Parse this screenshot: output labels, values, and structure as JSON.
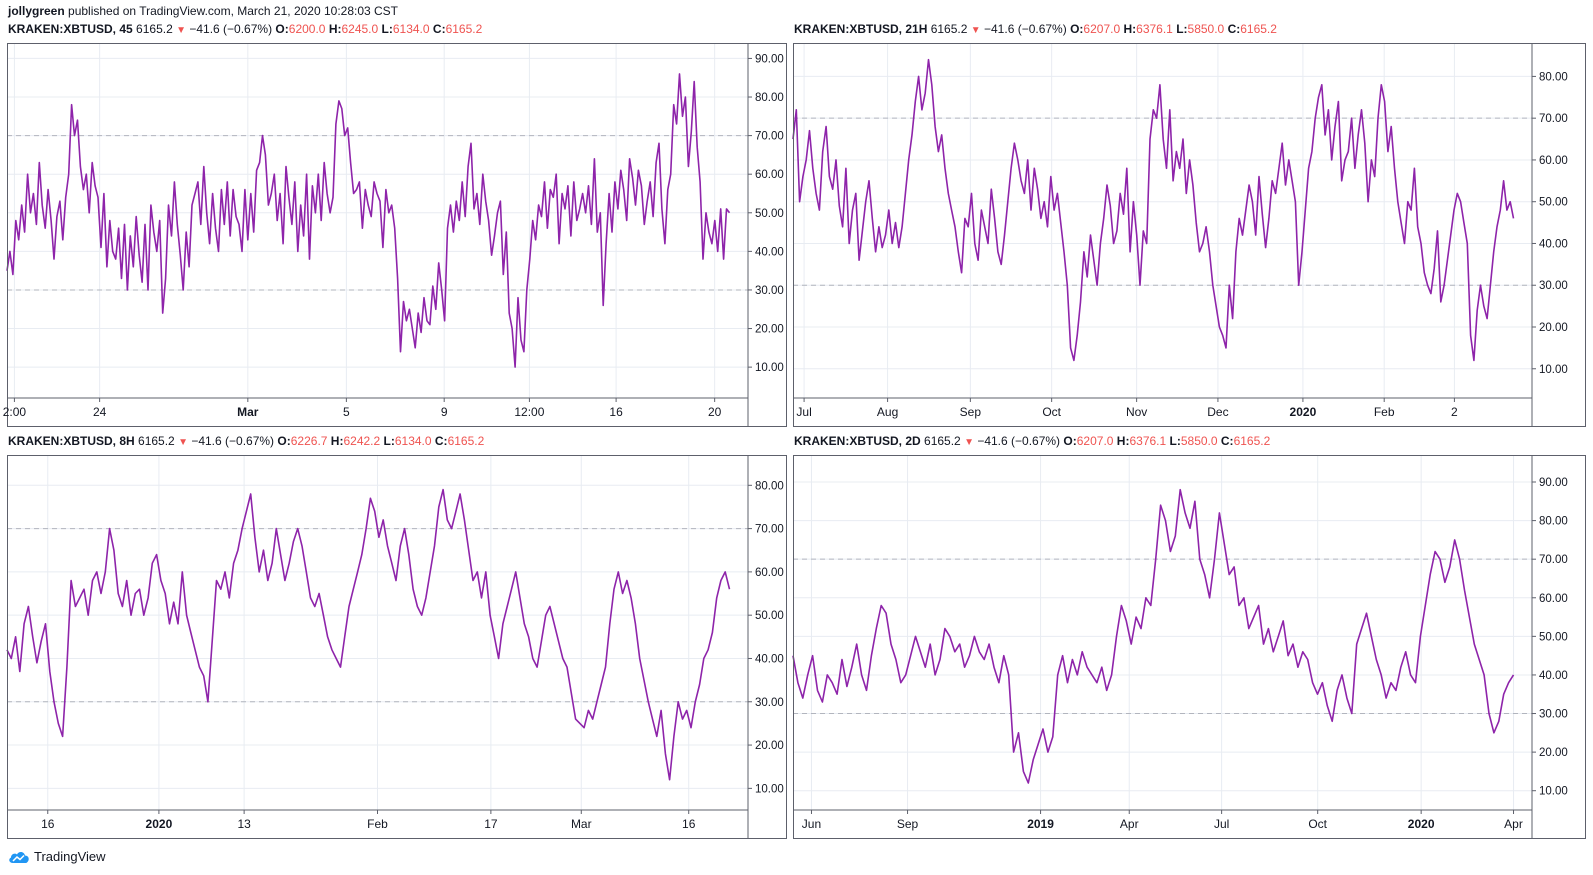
{
  "publisher": {
    "user": "jollygreen",
    "text": "published on TradingView.com, March 21, 2020 10:28:03 CST"
  },
  "footer": {
    "brand": "TradingView",
    "icon": "tradingview-cloud-icon"
  },
  "colors": {
    "series": "#8e24aa",
    "down": "#ef5350",
    "grid": "#e8ecf2",
    "level": "#b2b5be"
  },
  "chart_data": [
    {
      "type": "line",
      "symbol": "KRAKEN:XBTUSD",
      "interval": "45",
      "last": "6165.2",
      "change": "−41.6 (−0.67%)",
      "o": "6200.0",
      "h": "6245.0",
      "l": "6134.0",
      "c": "6165.2",
      "ylim": [
        2,
        94
      ],
      "yticks": [
        10,
        20,
        30,
        40,
        50,
        60,
        70,
        80,
        90
      ],
      "ytick_labels": [
        "10.00",
        "20.00",
        "30.00",
        "40.00",
        "50.00",
        "60.00",
        "70.00",
        "80.00",
        "90.00"
      ],
      "levels": [
        30,
        70
      ],
      "xticks": [
        {
          "label": "2:00",
          "pos": 0.01,
          "bold": false
        },
        {
          "label": "24",
          "pos": 0.125,
          "bold": false
        },
        {
          "label": "Mar",
          "pos": 0.325,
          "bold": true
        },
        {
          "label": "5",
          "pos": 0.458,
          "bold": false
        },
        {
          "label": "9",
          "pos": 0.59,
          "bold": false
        },
        {
          "label": "12:00",
          "pos": 0.705,
          "bold": false
        },
        {
          "label": "16",
          "pos": 0.822,
          "bold": false
        },
        {
          "label": "20",
          "pos": 0.955,
          "bold": false
        }
      ],
      "values": [
        35,
        40,
        34,
        48,
        43,
        52,
        45,
        60,
        50,
        55,
        47,
        63,
        52,
        46,
        56,
        48,
        38,
        49,
        53,
        43,
        54,
        60,
        78,
        70,
        74,
        62,
        56,
        60,
        50,
        63,
        57,
        54,
        41,
        55,
        36,
        48,
        40,
        38,
        46,
        33,
        47,
        30,
        44,
        36,
        49,
        39,
        32,
        47,
        30,
        52,
        45,
        40,
        48,
        24,
        33,
        52,
        44,
        58,
        47,
        39,
        30,
        45,
        36,
        52,
        55,
        58,
        47,
        62,
        50,
        42,
        55,
        46,
        40,
        56,
        47,
        58,
        44,
        56,
        49,
        47,
        40,
        56,
        43,
        55,
        45,
        61,
        63,
        70,
        65,
        52,
        55,
        60,
        48,
        55,
        42,
        62,
        54,
        47,
        58,
        40,
        52,
        44,
        60,
        38,
        57,
        50,
        60,
        48,
        63,
        55,
        50,
        54,
        73,
        79,
        77,
        70,
        72,
        63,
        55,
        56,
        58,
        46,
        56,
        52,
        49,
        58,
        55,
        53,
        41,
        56,
        50,
        52,
        46,
        33,
        14,
        27,
        22,
        25,
        20,
        15,
        24,
        19,
        28,
        22,
        21,
        31,
        25,
        37,
        30,
        22,
        46,
        52,
        45,
        53,
        48,
        58,
        49,
        62,
        68,
        51,
        55,
        47,
        60,
        53,
        48,
        39,
        44,
        50,
        53,
        34,
        45,
        24,
        20,
        10,
        28,
        17,
        14,
        30,
        38,
        48,
        43,
        52,
        49,
        58,
        46,
        56,
        54,
        60,
        42,
        55,
        51,
        57,
        44,
        58,
        48,
        51,
        55,
        50,
        57,
        47,
        64,
        45,
        50,
        26,
        42,
        55,
        45,
        58,
        51,
        61,
        56,
        48,
        64,
        59,
        52,
        61,
        57,
        47,
        53,
        58,
        49,
        63,
        68,
        51,
        42,
        56,
        60,
        78,
        73,
        86,
        75,
        80,
        62,
        71,
        84,
        67,
        58,
        38,
        50,
        45,
        42,
        48,
        40,
        51,
        38,
        51,
        50
      ]
    },
    {
      "type": "line",
      "symbol": "KRAKEN:XBTUSD",
      "interval": "21H",
      "last": "6165.2",
      "change": "−41.6 (−0.67%)",
      "o": "6207.0",
      "h": "6376.1",
      "l": "5850.0",
      "c": "6165.2",
      "ylim": [
        3,
        88
      ],
      "yticks": [
        10,
        20,
        30,
        40,
        50,
        60,
        70,
        80
      ],
      "ytick_labels": [
        "10.00",
        "20.00",
        "30.00",
        "40.00",
        "50.00",
        "60.00",
        "70.00",
        "80.00"
      ],
      "levels": [
        30,
        70
      ],
      "xticks": [
        {
          "label": "Jul",
          "pos": 0.015,
          "bold": false
        },
        {
          "label": "Aug",
          "pos": 0.128,
          "bold": false
        },
        {
          "label": "Sep",
          "pos": 0.24,
          "bold": false
        },
        {
          "label": "Oct",
          "pos": 0.35,
          "bold": false
        },
        {
          "label": "Nov",
          "pos": 0.465,
          "bold": false
        },
        {
          "label": "Dec",
          "pos": 0.575,
          "bold": false
        },
        {
          "label": "2020",
          "pos": 0.69,
          "bold": true
        },
        {
          "label": "Feb",
          "pos": 0.8,
          "bold": false
        },
        {
          "label": "2",
          "pos": 0.895,
          "bold": false
        }
      ],
      "values": [
        65,
        72,
        50,
        56,
        60,
        67,
        58,
        52,
        48,
        62,
        68,
        56,
        53,
        60,
        49,
        44,
        58,
        40,
        48,
        52,
        36,
        43,
        50,
        55,
        46,
        38,
        44,
        39,
        42,
        48,
        40,
        45,
        39,
        44,
        52,
        60,
        66,
        74,
        80,
        72,
        76,
        84,
        78,
        68,
        62,
        66,
        58,
        52,
        48,
        44,
        38,
        33,
        46,
        44,
        52,
        40,
        36,
        48,
        44,
        40,
        53,
        46,
        38,
        35,
        42,
        50,
        58,
        64,
        60,
        55,
        52,
        60,
        48,
        58,
        53,
        46,
        50,
        44,
        56,
        48,
        52,
        45,
        38,
        30,
        15,
        12,
        18,
        26,
        38,
        32,
        42,
        36,
        30,
        40,
        46,
        54,
        49,
        40,
        43,
        52,
        47,
        58,
        38,
        50,
        42,
        30,
        43,
        40,
        65,
        72,
        70,
        78,
        65,
        58,
        72,
        55,
        62,
        58,
        65,
        52,
        60,
        54,
        45,
        38,
        40,
        44,
        38,
        30,
        25,
        20,
        18,
        15,
        30,
        22,
        38,
        46,
        42,
        48,
        54,
        50,
        42,
        56,
        47,
        39,
        46,
        55,
        52,
        58,
        64,
        54,
        60,
        55,
        50,
        30,
        38,
        48,
        58,
        62,
        70,
        75,
        78,
        66,
        72,
        60,
        68,
        74,
        55,
        60,
        62,
        70,
        58,
        66,
        72,
        64,
        50,
        60,
        56,
        70,
        78,
        74,
        62,
        68,
        58,
        50,
        45,
        40,
        50,
        48,
        58,
        44,
        40,
        33,
        30,
        28,
        34,
        43,
        26,
        30,
        36,
        42,
        48,
        52,
        50,
        45,
        40,
        18,
        12,
        24,
        30,
        25,
        22,
        30,
        38,
        44,
        48,
        55,
        48,
        50,
        46
      ]
    },
    {
      "type": "line",
      "symbol": "KRAKEN:XBTUSD",
      "interval": "8H",
      "last": "6165.2",
      "change": "−41.6 (−0.67%)",
      "o": "6226.7",
      "h": "6242.2",
      "l": "6134.0",
      "c": "6165.2",
      "ylim": [
        5,
        87
      ],
      "yticks": [
        10,
        20,
        30,
        40,
        50,
        60,
        70,
        80
      ],
      "ytick_labels": [
        "10.00",
        "20.00",
        "30.00",
        "40.00",
        "50.00",
        "60.00",
        "70.00",
        "80.00"
      ],
      "levels": [
        30,
        70
      ],
      "xticks": [
        {
          "label": "16",
          "pos": 0.055,
          "bold": false
        },
        {
          "label": "2020",
          "pos": 0.205,
          "bold": true
        },
        {
          "label": "13",
          "pos": 0.32,
          "bold": false
        },
        {
          "label": "Feb",
          "pos": 0.5,
          "bold": false
        },
        {
          "label": "17",
          "pos": 0.653,
          "bold": false
        },
        {
          "label": "Mar",
          "pos": 0.775,
          "bold": false
        },
        {
          "label": "16",
          "pos": 0.92,
          "bold": false
        }
      ],
      "values": [
        42,
        40,
        45,
        37,
        48,
        52,
        45,
        39,
        44,
        48,
        37,
        30,
        25,
        22,
        38,
        58,
        52,
        54,
        56,
        50,
        58,
        60,
        55,
        60,
        70,
        65,
        55,
        52,
        58,
        50,
        55,
        56,
        50,
        54,
        62,
        64,
        58,
        55,
        48,
        53,
        48,
        60,
        50,
        46,
        42,
        38,
        36,
        30,
        44,
        58,
        56,
        60,
        54,
        62,
        65,
        70,
        74,
        78,
        68,
        60,
        65,
        58,
        62,
        70,
        64,
        58,
        62,
        67,
        70,
        66,
        60,
        54,
        52,
        55,
        50,
        45,
        42,
        40,
        38,
        45,
        52,
        56,
        60,
        64,
        70,
        77,
        74,
        68,
        72,
        66,
        62,
        58,
        66,
        70,
        64,
        56,
        52,
        50,
        54,
        60,
        66,
        75,
        79,
        72,
        70,
        74,
        78,
        72,
        65,
        58,
        60,
        54,
        60,
        50,
        45,
        40,
        48,
        52,
        56,
        60,
        54,
        48,
        45,
        40,
        38,
        44,
        50,
        52,
        48,
        44,
        40,
        38,
        32,
        26,
        25,
        24,
        28,
        26,
        30,
        34,
        38,
        48,
        56,
        60,
        55,
        58,
        54,
        48,
        40,
        35,
        30,
        26,
        22,
        28,
        18,
        12,
        22,
        30,
        26,
        28,
        24,
        30,
        34,
        40,
        42,
        46,
        54,
        58,
        60,
        56
      ]
    },
    {
      "type": "line",
      "symbol": "KRAKEN:XBTUSD",
      "interval": "2D",
      "last": "6165.2",
      "change": "−41.6 (−0.67%)",
      "o": "6207.0",
      "h": "6376.1",
      "l": "5850.0",
      "c": "6165.2",
      "ylim": [
        5,
        97
      ],
      "yticks": [
        10,
        20,
        30,
        40,
        50,
        60,
        70,
        80,
        90
      ],
      "ytick_labels": [
        "10.00",
        "20.00",
        "30.00",
        "40.00",
        "50.00",
        "60.00",
        "70.00",
        "80.00",
        "90.00"
      ],
      "levels": [
        30,
        70
      ],
      "xticks": [
        {
          "label": "Jun",
          "pos": 0.025,
          "bold": false
        },
        {
          "label": "Sep",
          "pos": 0.155,
          "bold": false
        },
        {
          "label": "2019",
          "pos": 0.335,
          "bold": true
        },
        {
          "label": "Apr",
          "pos": 0.455,
          "bold": false
        },
        {
          "label": "Jul",
          "pos": 0.58,
          "bold": false
        },
        {
          "label": "Oct",
          "pos": 0.71,
          "bold": false
        },
        {
          "label": "2020",
          "pos": 0.85,
          "bold": true
        },
        {
          "label": "Apr",
          "pos": 0.975,
          "bold": false
        }
      ],
      "values": [
        45,
        38,
        34,
        40,
        45,
        36,
        33,
        40,
        38,
        35,
        44,
        37,
        42,
        48,
        40,
        36,
        45,
        52,
        58,
        56,
        48,
        44,
        38,
        40,
        45,
        50,
        46,
        42,
        48,
        40,
        44,
        52,
        50,
        46,
        48,
        42,
        45,
        50,
        46,
        44,
        48,
        42,
        38,
        45,
        40,
        20,
        25,
        15,
        12,
        18,
        22,
        26,
        20,
        24,
        40,
        45,
        38,
        44,
        40,
        46,
        42,
        40,
        38,
        42,
        36,
        40,
        50,
        58,
        54,
        48,
        55,
        52,
        60,
        58,
        70,
        84,
        80,
        72,
        76,
        88,
        82,
        78,
        85,
        70,
        66,
        60,
        70,
        82,
        74,
        66,
        68,
        58,
        60,
        52,
        55,
        58,
        48,
        52,
        46,
        50,
        54,
        45,
        48,
        42,
        46,
        44,
        38,
        35,
        38,
        32,
        28,
        36,
        40,
        34,
        30,
        48,
        52,
        56,
        50,
        44,
        40,
        34,
        38,
        36,
        42,
        46,
        40,
        38,
        50,
        58,
        66,
        72,
        70,
        64,
        68,
        75,
        70,
        62,
        55,
        48,
        44,
        40,
        30,
        25,
        28,
        35,
        38,
        40
      ]
    }
  ]
}
